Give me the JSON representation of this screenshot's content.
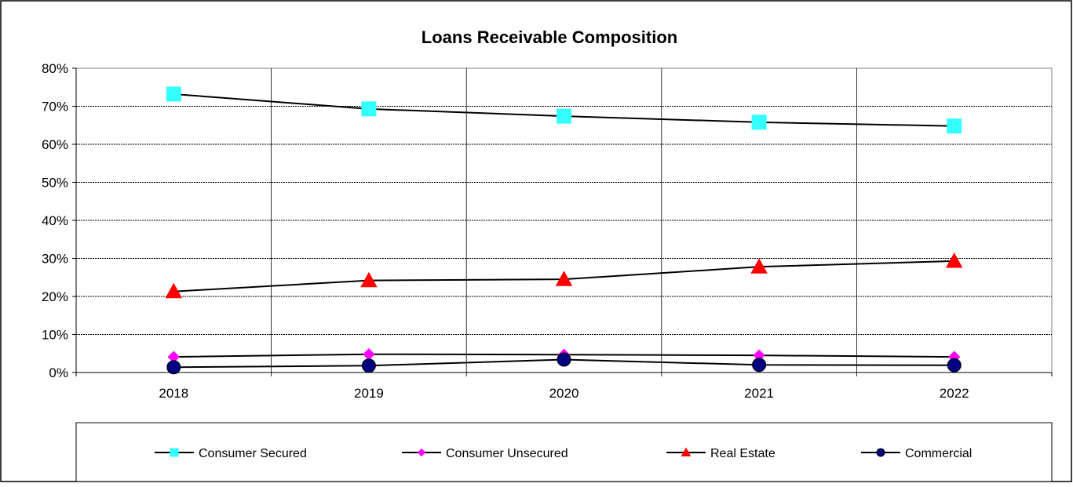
{
  "chart_data": {
    "type": "line",
    "title": "Loans Receivable Composition",
    "xlabel": "",
    "ylabel": "",
    "categories": [
      "2018",
      "2019",
      "2020",
      "2021",
      "2022"
    ],
    "ylim": [
      0,
      80
    ],
    "yticks": [
      "0%",
      "10%",
      "20%",
      "30%",
      "40%",
      "50%",
      "60%",
      "70%",
      "80%"
    ],
    "grid": true,
    "legend_position": "bottom",
    "series": [
      {
        "name": "Consumer Secured",
        "values": [
          73.2,
          69.3,
          67.4,
          65.8,
          64.8
        ],
        "marker": "square",
        "color": "#33ffff"
      },
      {
        "name": "Consumer Unsecured",
        "values": [
          4.1,
          4.8,
          4.7,
          4.5,
          4.1
        ],
        "marker": "diamond",
        "color": "#ff00ff"
      },
      {
        "name": "Real Estate",
        "values": [
          21.3,
          24.2,
          24.5,
          27.8,
          29.3
        ],
        "marker": "triangle",
        "color": "#ff0000"
      },
      {
        "name": "Commercial",
        "values": [
          1.4,
          1.8,
          3.4,
          2.0,
          1.9
        ],
        "marker": "circle",
        "color": "#000080"
      }
    ],
    "line_color": "#000000"
  }
}
